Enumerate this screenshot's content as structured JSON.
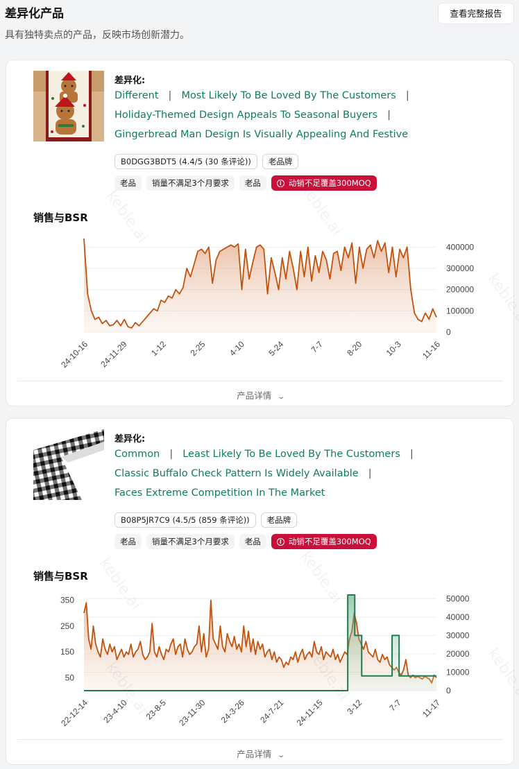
{
  "header": {
    "title": "差异化产品",
    "subtitle": "具有独特卖点的产品，反映市场创新潜力。",
    "report_button": "查看完整报告"
  },
  "watermark": "keble.ai",
  "products": [
    {
      "diff_label": "差异化:",
      "diff_lines": [
        [
          "Different",
          "Most Likely To Be Loved By The Customers"
        ],
        [
          "Holiday-Themed Design Appeals To Seasonal Buyers"
        ],
        [
          "Gingerbread Man Design Is Visually Appealing And Festive"
        ]
      ],
      "tags_row1": [
        {
          "text": "B0DGG3BDT5 (4.4/5 (30 条评论))",
          "style": "outline"
        },
        {
          "text": "老品牌",
          "style": "outline"
        }
      ],
      "tags_row2": [
        {
          "text": "老品",
          "style": "gray"
        },
        {
          "text": "销量不满足3个月要求",
          "style": "gray"
        },
        {
          "text": "老品",
          "style": "gray"
        },
        {
          "text": "动销不足覆盖300MOQ",
          "style": "red",
          "icon": "info-icon"
        }
      ],
      "chart_title": "销售与BSR",
      "details_label": "产品详情",
      "chart_data": {
        "type": "area",
        "x_ticks": [
          "24-10-16",
          "24-11-29",
          "1-12",
          "2-25",
          "4-10",
          "5-24",
          "7-7",
          "8-20",
          "10-3",
          "11-16"
        ],
        "right_axis": {
          "ticks": [
            0,
            100000,
            200000,
            300000,
            400000
          ],
          "range": [
            0,
            450000
          ]
        },
        "series": [
          {
            "type": "area",
            "axis": "right",
            "color": "#c2520c",
            "values": [
              440000,
              180000,
              100000,
              60000,
              70000,
              40000,
              55000,
              30000,
              35000,
              55000,
              30000,
              60000,
              25000,
              20000,
              45000,
              30000,
              50000,
              70000,
              90000,
              110000,
              100000,
              150000,
              140000,
              170000,
              160000,
              200000,
              180000,
              210000,
              300000,
              260000,
              320000,
              380000,
              390000,
              370000,
              400000,
              230000,
              340000,
              380000,
              390000,
              400000,
              410000,
              400000,
              415000,
              200000,
              390000,
              250000,
              330000,
              400000,
              410000,
              390000,
              180000,
              350000,
              280000,
              200000,
              350000,
              250000,
              380000,
              300000,
              200000,
              380000,
              260000,
              400000,
              240000,
              360000,
              280000,
              380000,
              340000,
              250000,
              370000,
              380000,
              290000,
              400000,
              350000,
              420000,
              230000,
              400000,
              300000,
              390000,
              410000,
              350000,
              430000,
              380000,
              420000,
              280000,
              400000,
              260000,
              390000,
              350000,
              400000,
              200000,
              90000,
              60000,
              50000,
              90000,
              60000,
              110000,
              70000
            ]
          }
        ]
      }
    },
    {
      "diff_label": "差异化:",
      "diff_lines": [
        [
          "Common",
          "Least Likely To Be Loved By The Customers"
        ],
        [
          "Classic Buffalo Check Pattern Is Widely Available"
        ],
        [
          "Faces Extreme Competition In The Market"
        ]
      ],
      "tags_row1": [
        {
          "text": "B08P5JR7C9 (4.5/5 (859 条评论))",
          "style": "outline"
        },
        {
          "text": "老品牌",
          "style": "outline"
        }
      ],
      "tags_row2": [
        {
          "text": "老品",
          "style": "gray"
        },
        {
          "text": "销量不满足3个月要求",
          "style": "gray"
        },
        {
          "text": "老品",
          "style": "gray"
        },
        {
          "text": "动销不足覆盖300MOQ",
          "style": "red",
          "icon": "info-icon"
        }
      ],
      "chart_title": "销售与BSR",
      "details_label": "产品详情",
      "chart_data": {
        "type": "line",
        "x_ticks": [
          "22-12-14",
          "23-4-10",
          "23-8-5",
          "23-11-30",
          "24-3-26",
          "24-7-21",
          "24-11-15",
          "3-12",
          "7-7",
          "11-17"
        ],
        "left_axis": {
          "ticks": [
            50,
            150,
            250,
            350
          ],
          "range": [
            0,
            370
          ]
        },
        "right_axis": {
          "ticks": [
            0,
            10000,
            20000,
            30000,
            40000,
            50000
          ],
          "range": [
            0,
            52000
          ]
        },
        "series": [
          {
            "type": "area",
            "axis": "left",
            "color": "#c2520c",
            "values": [
              300,
              340,
              200,
              160,
              250,
              180,
              150,
              130,
              200,
              160,
              140,
              180,
              150,
              170,
              120,
              140,
              160,
              130,
              150,
              140,
              180,
              130,
              150,
              160,
              190,
              140,
              120,
              130,
              150,
              260,
              150,
              130,
              170,
              140,
              120,
              160,
              150,
              180,
              200,
              140,
              170,
              180,
              130,
              200,
              160,
              140,
              150,
              170,
              180,
              250,
              150,
              220,
              130,
              160,
              350,
              200,
              180,
              160,
              250,
              170,
              150,
              220,
              190,
              170,
              210,
              160,
              180,
              150,
              250,
              170,
              230,
              150,
              200,
              140,
              190,
              160,
              180,
              130,
              150,
              160,
              120,
              150,
              110,
              130,
              120,
              90,
              110,
              100,
              130,
              120,
              150,
              110,
              140,
              160,
              120,
              140,
              150,
              130,
              190,
              150,
              140,
              170,
              120,
              150,
              140,
              130,
              160,
              120,
              140,
              110,
              130,
              150,
              140,
              200,
              230,
              300,
              260,
              200,
              180,
              160,
              190,
              150,
              140,
              130,
              160,
              120,
              110,
              140,
              120,
              130,
              100,
              90,
              80,
              90,
              70,
              60,
              80,
              120,
              60,
              50,
              60,
              50,
              55,
              50,
              45,
              55,
              50,
              45,
              30,
              60,
              50
            ]
          },
          {
            "type": "step",
            "axis": "right",
            "color": "#1f7a4d",
            "values": [
              0,
              0,
              0,
              0,
              0,
              0,
              0,
              0,
              0,
              0,
              0,
              0,
              0,
              0,
              0,
              0,
              0,
              0,
              0,
              0,
              0,
              0,
              0,
              0,
              0,
              0,
              0,
              0,
              0,
              0,
              0,
              0,
              0,
              0,
              0,
              0,
              0,
              0,
              0,
              0,
              0,
              0,
              0,
              0,
              0,
              0,
              0,
              0,
              0,
              0,
              0,
              0,
              0,
              0,
              0,
              0,
              0,
              0,
              0,
              0,
              0,
              0,
              0,
              0,
              0,
              0,
              0,
              0,
              0,
              0,
              0,
              0,
              0,
              0,
              0,
              0,
              0,
              0,
              0,
              0,
              0,
              0,
              0,
              0,
              0,
              0,
              0,
              0,
              0,
              0,
              0,
              0,
              0,
              0,
              0,
              0,
              0,
              0,
              0,
              0,
              0,
              0,
              0,
              0,
              0,
              0,
              0,
              0,
              0,
              0,
              0,
              0,
              0,
              52000,
              52000,
              52000,
              30000,
              30000,
              30000,
              8000,
              8000,
              8000,
              8000,
              8000,
              8000,
              8000,
              8000,
              8000,
              8000,
              8000,
              8000,
              8000,
              30000,
              30000,
              30000,
              8000,
              8000,
              8000,
              8000,
              8000,
              8000,
              8000,
              8000,
              8000,
              8000,
              8000,
              8000,
              8000,
              8000,
              8000,
              8000,
              8000
            ]
          }
        ]
      }
    }
  ]
}
